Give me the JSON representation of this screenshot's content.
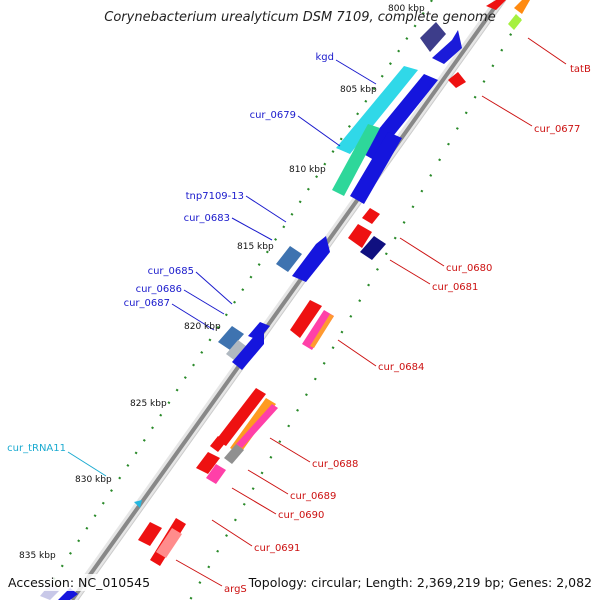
{
  "title": "Corynebacterium urealyticum DSM 7109, complete genome",
  "footer": {
    "accession": "Accession: NC_010545",
    "summary": "Topology: circular; Length: 2,369,219 bp; Genes: 2,082"
  },
  "ticks": [
    "800 kbp",
    "805 kbp",
    "810 kbp",
    "815 kbp",
    "820 kbp",
    "825 kbp",
    "830 kbp",
    "835 kbp"
  ],
  "labels": {
    "blue": [
      "kgd",
      "cur_0679",
      "tnp7109-13",
      "cur_0683",
      "cur_0685",
      "cur_0686",
      "cur_0687"
    ],
    "cyan": [
      "cur_tRNA11"
    ],
    "red": [
      "tatB",
      "cur_0677",
      "cur_0680",
      "cur_0681",
      "cur_0684",
      "cur_0688",
      "cur_0689",
      "cur_0690",
      "cur_0691",
      "argS"
    ]
  },
  "colors": {
    "blue_label": "#1a1acc",
    "red_label": "#cc1111",
    "cyan_label": "#1aaad0",
    "backbone": "#888888",
    "dots": "#2a8a2a"
  }
}
